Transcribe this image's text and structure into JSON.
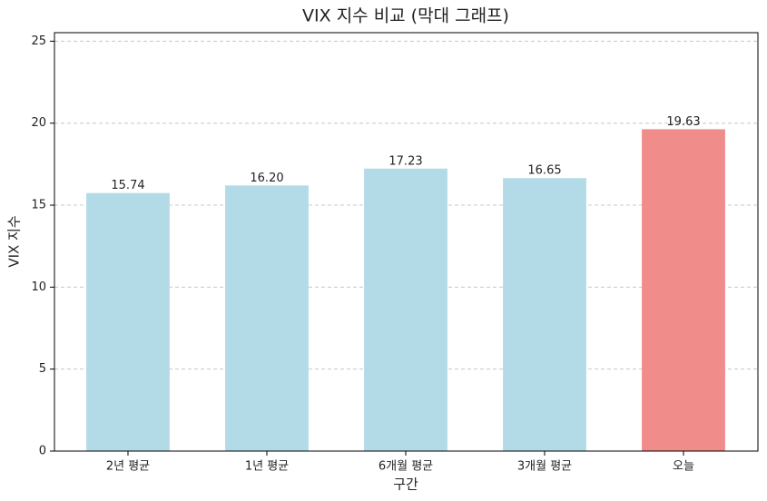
{
  "chart_data": {
    "type": "bar",
    "title": "VIX 지수 비교 (막대 그래프)",
    "x_label": "구간",
    "y_label": "VIX 지수",
    "categories": [
      "2년 평균",
      "1년 평균",
      "6개월 평균",
      "3개월 평균",
      "오늘"
    ],
    "values": [
      15.74,
      16.2,
      17.23,
      16.65,
      19.63
    ],
    "value_labels": [
      "15.74",
      "16.20",
      "17.23",
      "16.65",
      "19.63"
    ],
    "colors": [
      "#b3dbe7",
      "#b3dbe7",
      "#b3dbe7",
      "#b3dbe7",
      "#f08c8a"
    ],
    "ylim": [
      0,
      25.52
    ],
    "yticks": [
      0,
      5,
      10,
      15,
      20,
      25
    ],
    "grid": true
  }
}
